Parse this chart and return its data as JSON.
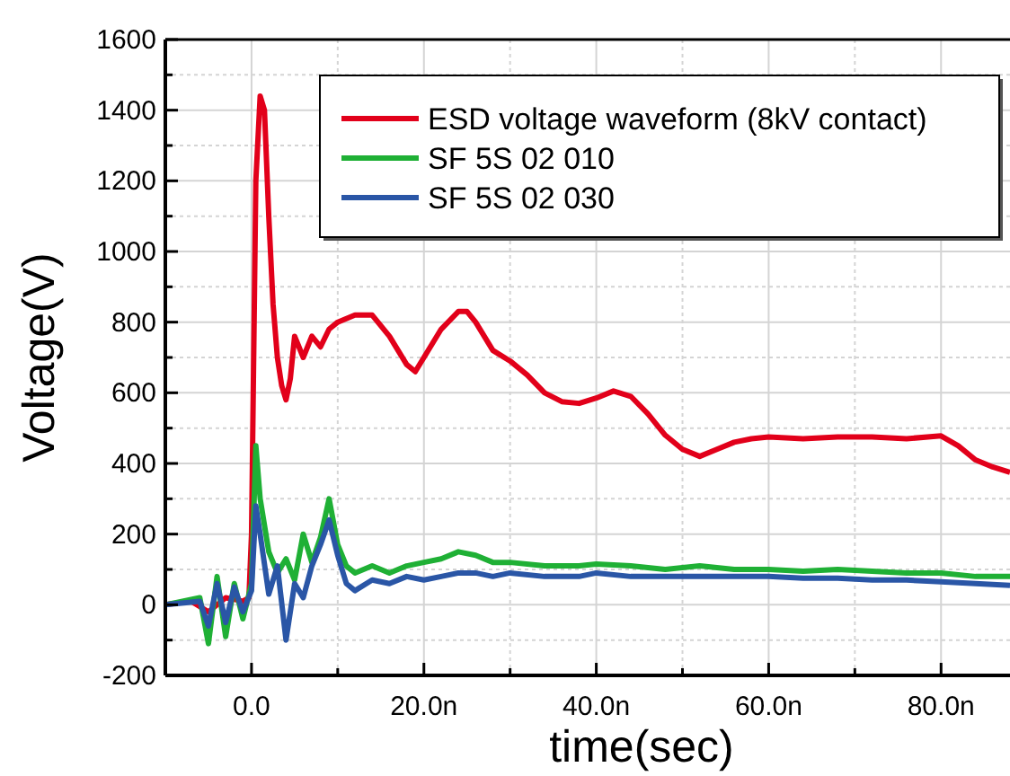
{
  "chart_data": {
    "type": "line",
    "xlabel": "time(sec)",
    "ylabel": "Voltage(V)",
    "xlim": [
      -10,
      88
    ],
    "ylim": [
      -200,
      1600
    ],
    "xticks": [
      {
        "value": -10,
        "label": null
      },
      {
        "value": 0,
        "label": "0.0"
      },
      {
        "value": 10,
        "label": null
      },
      {
        "value": 20,
        "label": "20.0n"
      },
      {
        "value": 30,
        "label": null
      },
      {
        "value": 40,
        "label": "40.0n"
      },
      {
        "value": 50,
        "label": null
      },
      {
        "value": 60,
        "label": "60.0n"
      },
      {
        "value": 70,
        "label": null
      },
      {
        "value": 80,
        "label": "80.0n"
      }
    ],
    "yticks": [
      -200,
      {
        "value": -100,
        "label": null
      },
      0,
      {
        "value": 100,
        "label": null
      },
      200,
      {
        "value": 300,
        "label": null
      },
      400,
      {
        "value": 500,
        "label": null
      },
      600,
      {
        "value": 700,
        "label": null
      },
      800,
      {
        "value": 900,
        "label": null
      },
      1000,
      {
        "value": 1100,
        "label": null
      },
      1200,
      {
        "value": 1300,
        "label": null
      },
      1400,
      {
        "value": 1500,
        "label": null
      },
      1600
    ],
    "grid": true,
    "legend": "top right",
    "line_style": "solid",
    "series": [
      {
        "name": "ESD voltage waveform (8kV contact)",
        "color": "#e2001a",
        "x": [
          -10,
          -7,
          -5,
          -3,
          -1,
          -0.3,
          0,
          0.5,
          1,
          1.5,
          2,
          2.5,
          3,
          3.5,
          4,
          4.5,
          5,
          6,
          7,
          8,
          9,
          10,
          12,
          14,
          16,
          18,
          19,
          20,
          22,
          24,
          25,
          26,
          28,
          30,
          32,
          34,
          36,
          38,
          40,
          42,
          44,
          46,
          48,
          50,
          52,
          54,
          56,
          58,
          60,
          64,
          68,
          72,
          76,
          80,
          82,
          84,
          86,
          88
        ],
        "values": [
          0,
          10,
          -20,
          20,
          10,
          20,
          200,
          1200,
          1440,
          1400,
          1100,
          850,
          700,
          620,
          580,
          640,
          760,
          700,
          760,
          730,
          780,
          800,
          820,
          820,
          760,
          680,
          660,
          700,
          780,
          830,
          830,
          800,
          720,
          690,
          650,
          600,
          575,
          570,
          585,
          605,
          590,
          540,
          480,
          440,
          420,
          440,
          460,
          470,
          475,
          470,
          475,
          475,
          470,
          478,
          450,
          410,
          390,
          375
        ]
      },
      {
        "name": "SF 5S 02 010",
        "color": "#1fb035",
        "x": [
          -10,
          -6,
          -5,
          -4,
          -3,
          -2,
          -1,
          0,
          0.5,
          1,
          2,
          3,
          4,
          5,
          6,
          7,
          8,
          9,
          10,
          11,
          12,
          14,
          16,
          18,
          20,
          22,
          24,
          26,
          28,
          30,
          34,
          38,
          40,
          44,
          48,
          52,
          56,
          60,
          64,
          68,
          72,
          76,
          80,
          84,
          88
        ],
        "values": [
          0,
          20,
          -110,
          80,
          -90,
          60,
          -40,
          60,
          450,
          300,
          150,
          90,
          130,
          70,
          200,
          120,
          190,
          300,
          170,
          110,
          90,
          110,
          90,
          110,
          120,
          130,
          150,
          140,
          120,
          120,
          110,
          110,
          115,
          110,
          100,
          110,
          100,
          100,
          95,
          100,
          95,
          90,
          90,
          80,
          80
        ]
      },
      {
        "name": "SF 5S 02 030",
        "color": "#2a56a6",
        "x": [
          -10,
          -6,
          -5,
          -4,
          -3,
          -2,
          -1,
          0,
          0.5,
          1,
          2,
          3,
          4,
          5,
          6,
          7,
          8,
          9,
          10,
          11,
          12,
          14,
          16,
          18,
          20,
          22,
          24,
          26,
          28,
          30,
          34,
          38,
          40,
          44,
          48,
          52,
          56,
          60,
          64,
          68,
          72,
          76,
          80,
          84,
          88
        ],
        "values": [
          0,
          10,
          -60,
          60,
          -50,
          50,
          -20,
          40,
          280,
          200,
          30,
          110,
          -100,
          60,
          20,
          110,
          170,
          240,
          140,
          60,
          40,
          70,
          60,
          80,
          70,
          80,
          90,
          90,
          80,
          90,
          80,
          80,
          90,
          80,
          80,
          80,
          80,
          80,
          75,
          75,
          70,
          70,
          65,
          60,
          55
        ]
      }
    ]
  }
}
